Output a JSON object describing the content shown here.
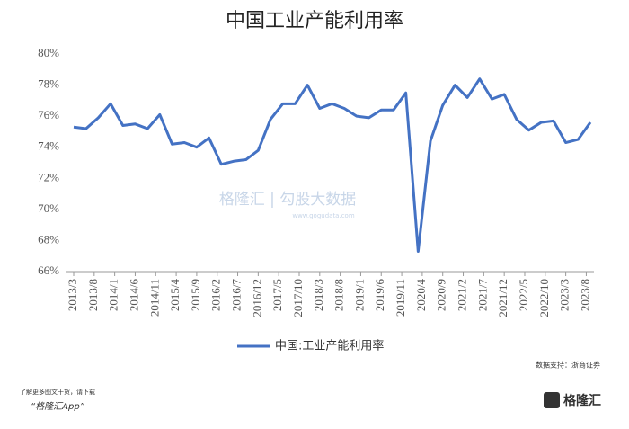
{
  "chart_data": {
    "type": "line",
    "title": "中国工业产能利用率",
    "x": [
      "2013/3",
      "2013/6",
      "2013/9",
      "2013/12",
      "2014/3",
      "2014/6",
      "2014/9",
      "2014/12",
      "2015/3",
      "2015/6",
      "2015/9",
      "2015/12",
      "2016/3",
      "2016/6",
      "2016/9",
      "2016/12",
      "2017/3",
      "2017/6",
      "2017/9",
      "2017/12",
      "2018/3",
      "2018/6",
      "2018/9",
      "2018/12",
      "2019/3",
      "2019/6",
      "2019/9",
      "2019/12",
      "2020/3",
      "2020/6",
      "2020/9",
      "2020/12",
      "2021/3",
      "2021/6",
      "2021/9",
      "2021/12",
      "2022/3",
      "2022/6",
      "2022/9",
      "2022/12",
      "2023/3",
      "2023/6",
      "2023/9"
    ],
    "series": [
      {
        "name": "中国:工业产能利用率",
        "color": "#4472c4",
        "values": [
          75.3,
          75.2,
          75.9,
          76.8,
          75.4,
          75.5,
          75.2,
          76.1,
          74.2,
          74.3,
          74.0,
          74.6,
          72.9,
          73.1,
          73.2,
          73.8,
          75.8,
          76.8,
          76.8,
          78.0,
          76.5,
          76.8,
          76.5,
          76.0,
          75.9,
          76.4,
          76.4,
          77.5,
          67.3,
          74.4,
          76.7,
          78.0,
          77.2,
          78.4,
          77.1,
          77.4,
          75.8,
          75.1,
          75.6,
          75.7,
          74.3,
          74.5,
          75.6
        ]
      }
    ],
    "xticks": [
      "2013/3",
      "2013/8",
      "2014/1",
      "2014/6",
      "2014/11",
      "2015/4",
      "2015/9",
      "2016/2",
      "2016/7",
      "2016/12",
      "2017/5",
      "2017/10",
      "2018/3",
      "2018/8",
      "2019/1",
      "2019/6",
      "2019/11",
      "2020/4",
      "2020/9",
      "2021/2",
      "2021/7",
      "2021/12",
      "2022/5",
      "2022/10",
      "2023/3",
      "2023/8"
    ],
    "ylim": [
      66,
      80
    ],
    "yticks": [
      {
        "value": 66,
        "label": "66%"
      },
      {
        "value": 68,
        "label": "68%"
      },
      {
        "value": 70,
        "label": "70%"
      },
      {
        "value": 72,
        "label": "72%"
      },
      {
        "value": 74,
        "label": "74%"
      },
      {
        "value": 76,
        "label": "76%"
      },
      {
        "value": 78,
        "label": "78%"
      },
      {
        "value": 80,
        "label": "80%"
      }
    ],
    "grid": false,
    "legend": "bottom",
    "watermark": "格隆汇 | 勾股大数据",
    "watermark_url": "www.gogudata.com",
    "source": "数据支持：浙商证券"
  },
  "footer": {
    "note": "了解更多图文干货，请下载",
    "app": "“格隆汇App”",
    "logo": "格隆汇"
  }
}
